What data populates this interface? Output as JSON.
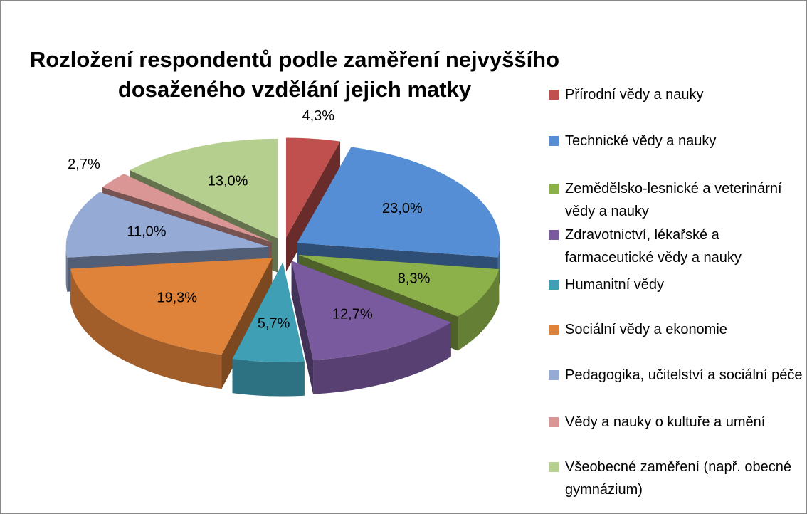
{
  "chart_data": {
    "type": "pie",
    "title": "Rozložení respondentů podle zaměření nejvyššího dosaženého vzdělání jejich matky",
    "categories": [
      "Přírodní vědy a nauky",
      "Technické vědy a nauky",
      "Zemědělsko-lesnické a veterinární vědy a nauky",
      "Zdravotnictví, lékařské a farmaceutické vědy a nauky",
      "Humanitní vědy",
      "Sociální vědy a ekonomie",
      "Pedagogika, učitelství a sociální péče",
      "Vědy a nauky o kultuře a umění",
      "Všeobecné zaměření (např. obecné gymnázium)"
    ],
    "values": [
      4.3,
      23.0,
      8.3,
      12.7,
      5.7,
      19.3,
      11.0,
      2.7,
      13.0
    ],
    "value_labels": [
      "4,3%",
      "23,0%",
      "8,3%",
      "12,7%",
      "5,7%",
      "19,3%",
      "11,0%",
      "2,7%",
      "13,0%"
    ],
    "colors": [
      "#c0504d",
      "#558ed5",
      "#8cb04a",
      "#7a5a9e",
      "#3f9fb5",
      "#e0833a",
      "#95abd6",
      "#d99694",
      "#b5cf8e"
    ],
    "legend": "right"
  }
}
